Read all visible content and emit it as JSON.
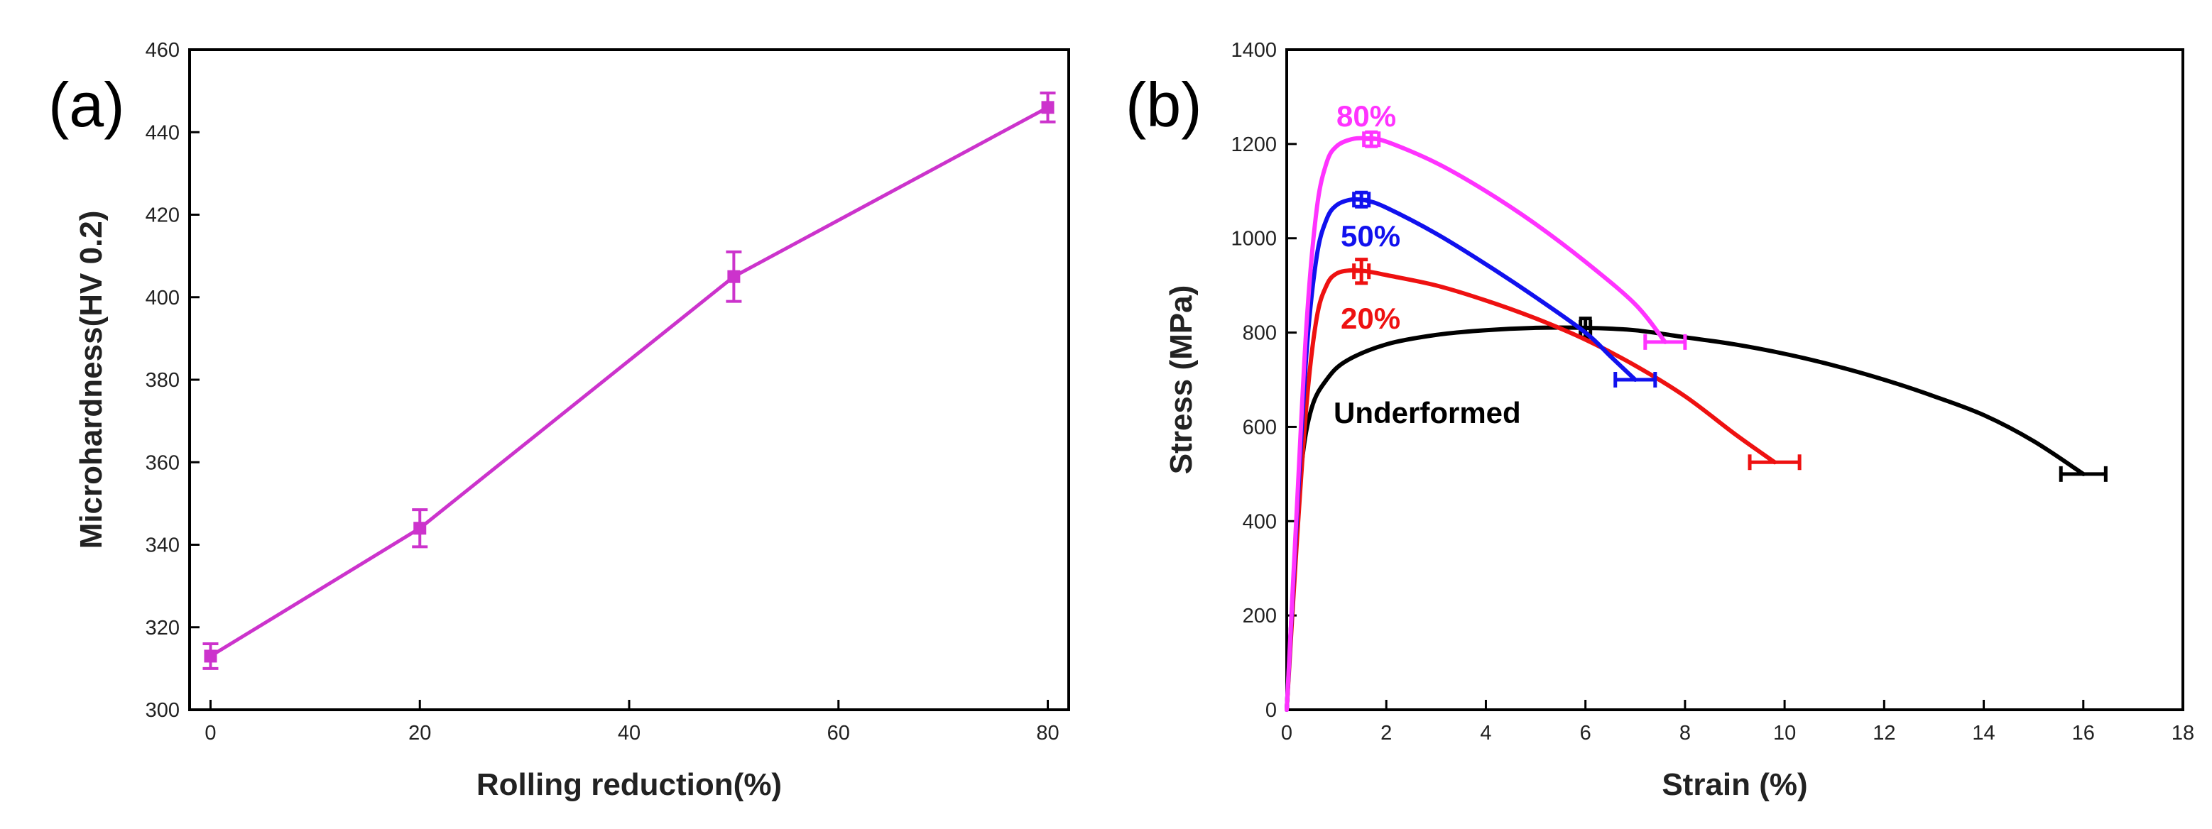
{
  "chart_data": [
    {
      "panel_label": "(a)",
      "type": "line",
      "title": "",
      "xlabel": "Rolling reduction(%)",
      "ylabel": "Microhardness(HV 0.2)",
      "xlim": [
        -2,
        82
      ],
      "ylim": [
        300,
        460
      ],
      "xticks": [
        0,
        20,
        40,
        60,
        80
      ],
      "yticks": [
        300,
        320,
        340,
        360,
        380,
        400,
        420,
        440,
        460
      ],
      "color": "#cc33cc",
      "series": [
        {
          "name": "Microhardness",
          "x": [
            0,
            20,
            50,
            80
          ],
          "y": [
            313,
            344,
            405,
            446
          ],
          "err": [
            3,
            4.5,
            6,
            3.5
          ]
        }
      ]
    },
    {
      "panel_label": "(b)",
      "type": "line",
      "title": "",
      "xlabel": "Strain (%)",
      "ylabel": "Stress (MPa)",
      "xlim": [
        0,
        18
      ],
      "ylim": [
        0,
        1400
      ],
      "xticks": [
        0,
        2,
        4,
        6,
        8,
        10,
        12,
        14,
        16,
        18
      ],
      "yticks": [
        0,
        200,
        400,
        600,
        800,
        1000,
        1200,
        1400
      ],
      "series": [
        {
          "name": "Underformed",
          "label": "Underformed",
          "color": "#000000",
          "x": [
            0,
            0.15,
            0.3,
            0.5,
            0.8,
            1.2,
            2,
            3,
            4,
            5,
            6,
            7,
            8,
            9,
            10,
            11,
            12,
            13,
            14,
            15,
            16
          ],
          "y": [
            0,
            300,
            520,
            640,
            700,
            740,
            775,
            795,
            805,
            810,
            810,
            805,
            790,
            775,
            755,
            730,
            700,
            665,
            625,
            570,
            500
          ],
          "err_x": [
            [
              6,
              810,
              0.1,
              20
            ],
            [
              16,
              500,
              0.45,
              0
            ]
          ]
        },
        {
          "name": "20%",
          "label": "20%",
          "color": "#ee1111",
          "x": [
            0,
            0.2,
            0.4,
            0.6,
            0.8,
            1.0,
            1.3,
            1.6,
            2,
            3,
            4,
            5,
            6,
            7,
            8,
            9,
            9.8
          ],
          "y": [
            0,
            350,
            650,
            830,
            900,
            925,
            932,
            930,
            922,
            900,
            868,
            830,
            785,
            730,
            665,
            585,
            525
          ],
          "err_x": [
            [
              1.5,
              930,
              0.15,
              25
            ],
            [
              9.8,
              525,
              0.5,
              0
            ]
          ]
        },
        {
          "name": "50%",
          "label": "50%",
          "color": "#1111ee",
          "x": [
            0,
            0.2,
            0.4,
            0.6,
            0.8,
            1.0,
            1.3,
            1.6,
            2,
            3,
            4,
            5,
            6,
            6.5,
            7
          ],
          "y": [
            0,
            400,
            760,
            960,
            1040,
            1070,
            1082,
            1080,
            1065,
            1010,
            945,
            875,
            800,
            750,
            700
          ],
          "err_x": [
            [
              1.5,
              1082,
              0.15,
              15
            ],
            [
              7,
              700,
              0.4,
              0
            ]
          ]
        },
        {
          "name": "80%",
          "label": "80%",
          "color": "#ff33ff",
          "x": [
            0,
            0.2,
            0.4,
            0.6,
            0.8,
            1.0,
            1.3,
            1.6,
            2,
            3,
            4,
            5,
            6,
            7,
            7.6
          ],
          "y": [
            0,
            420,
            820,
            1060,
            1160,
            1195,
            1210,
            1212,
            1205,
            1160,
            1100,
            1030,
            950,
            860,
            780
          ],
          "err_x": [
            [
              1.7,
              1210,
              0.15,
              15
            ],
            [
              7.6,
              780,
              0.4,
              0
            ]
          ]
        }
      ]
    }
  ]
}
